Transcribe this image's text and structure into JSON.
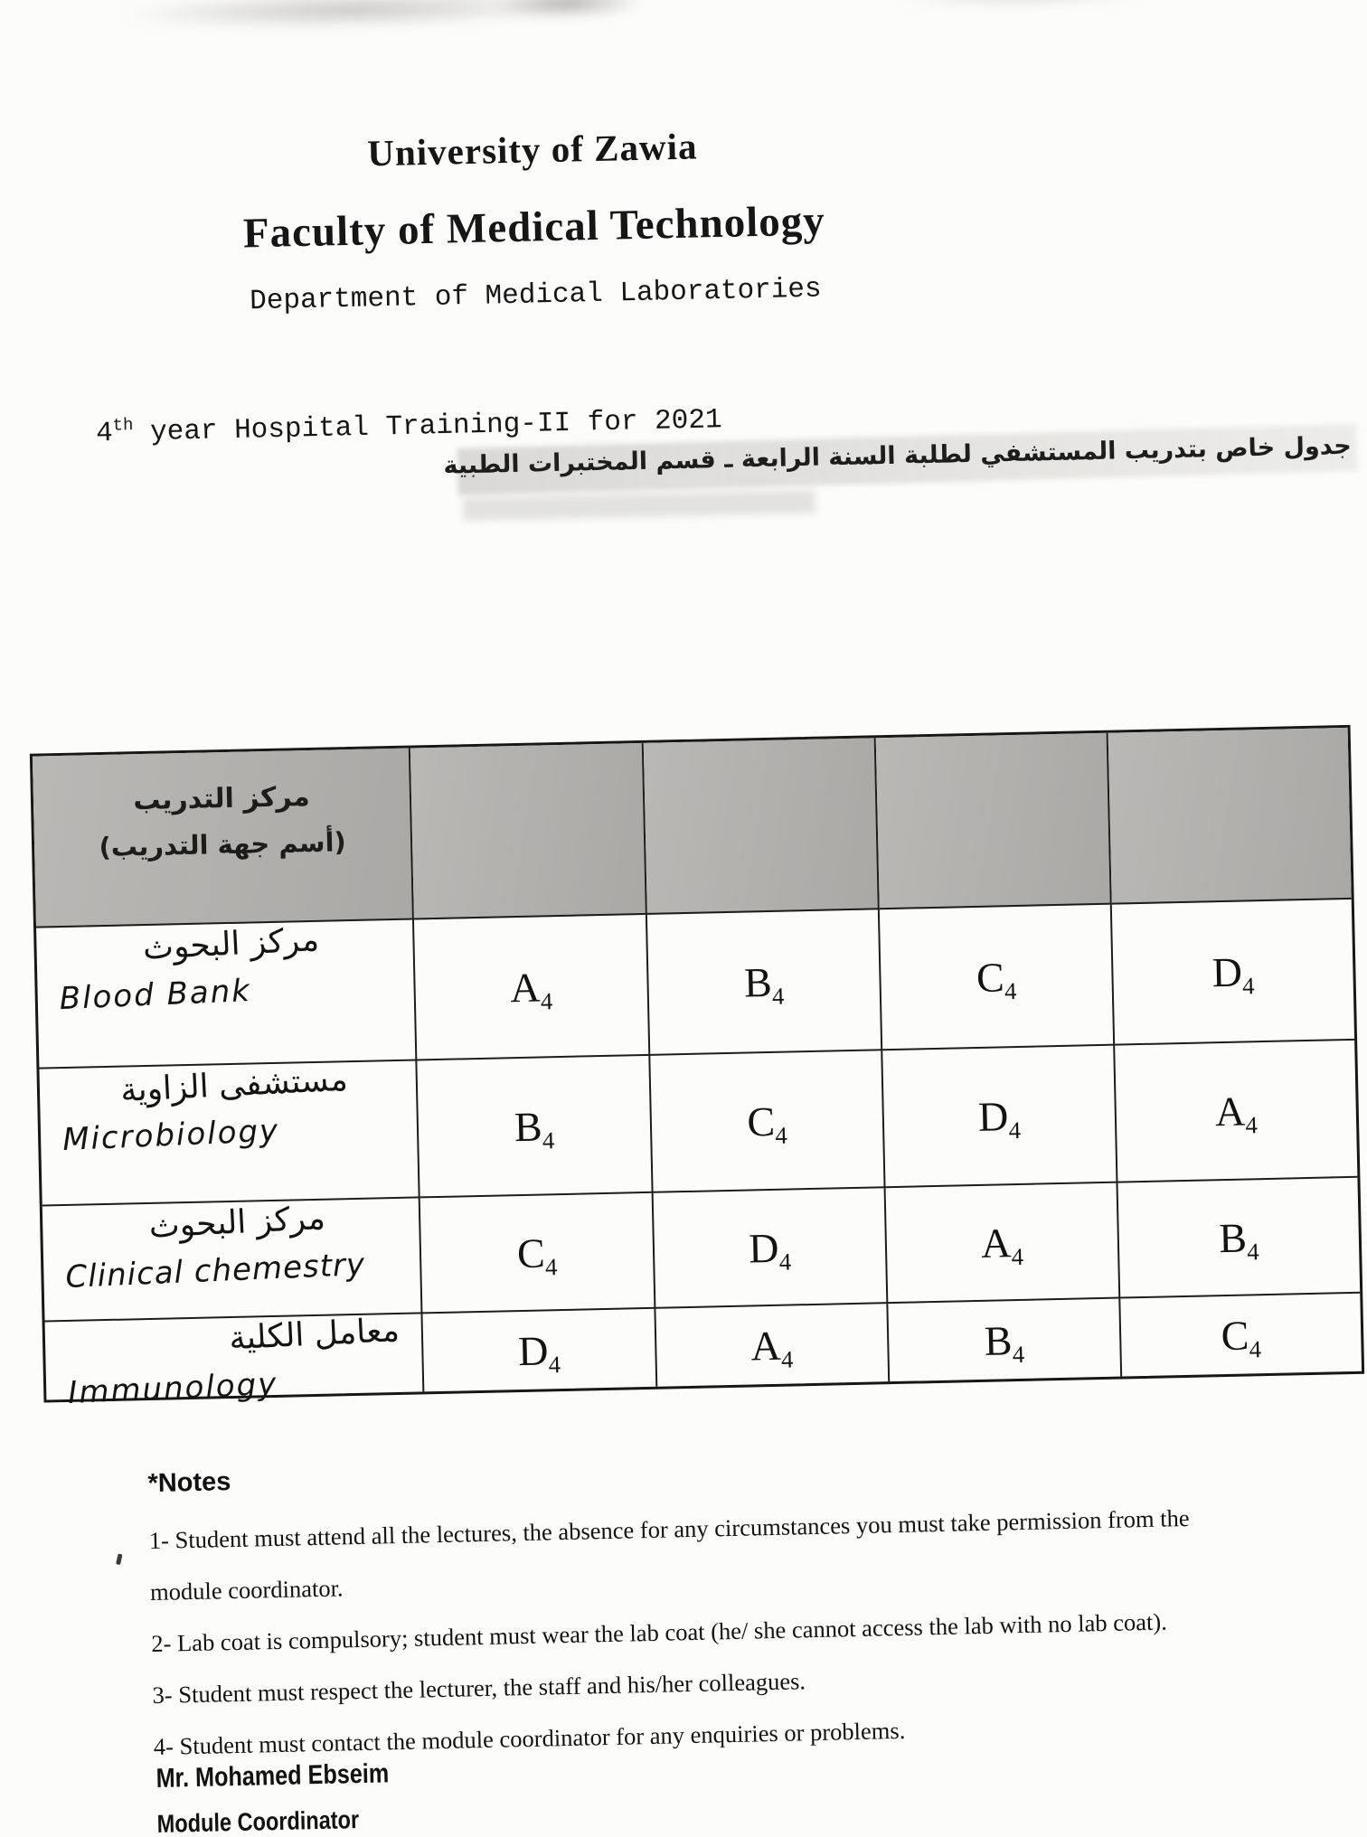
{
  "header": {
    "university": "University of Zawia",
    "faculty": "Faculty of Medical Technology",
    "department": "Department of Medical Laboratories",
    "course": {
      "num": "4",
      "sup": "th",
      "rest": " year Hospital Training-II for 2021"
    },
    "subtitle_ar": "جدول خاص بتدريب المستشفي لطلبة السنة الرابعة ـ قسم المختبرات الطبية"
  },
  "table": {
    "corner_header": {
      "line1": "مركز التدريب",
      "line2": "(أسم جهة التدريب)"
    },
    "rows": [
      {
        "name_ar": "مركز البحوث",
        "name_en": "Blood Bank",
        "cells": [
          {
            "l": "A",
            "s": "4"
          },
          {
            "l": "B",
            "s": "4"
          },
          {
            "l": "C",
            "s": "4"
          },
          {
            "l": "D",
            "s": "4"
          }
        ]
      },
      {
        "name_ar": "مستشفى الزاوية",
        "name_en": "Microbiology",
        "cells": [
          {
            "l": "B",
            "s": "4"
          },
          {
            "l": "C",
            "s": "4"
          },
          {
            "l": "D",
            "s": "4"
          },
          {
            "l": "A",
            "s": "4"
          }
        ]
      },
      {
        "name_ar": "مركز البحوث",
        "name_en": "Clinical chemestry",
        "cells": [
          {
            "l": "C",
            "s": "4"
          },
          {
            "l": "D",
            "s": "4"
          },
          {
            "l": "A",
            "s": "4"
          },
          {
            "l": "B",
            "s": "4"
          }
        ]
      },
      {
        "name_ar": "معامل الكلية",
        "name_en": "Immunology",
        "cells": [
          {
            "l": "D",
            "s": "4"
          },
          {
            "l": "A",
            "s": "4"
          },
          {
            "l": "B",
            "s": "4"
          },
          {
            "l": "C",
            "s": "4"
          }
        ]
      }
    ]
  },
  "notes": {
    "heading": "*Notes",
    "item1_num": "1-",
    "item1_text": " Student must attend all the lectures, the absence for any circumstances you must take permission from the",
    "item1_wrap": "module coordinator.",
    "item2_num": "2-",
    "item2_text": " Lab coat is compulsory; student must wear the lab coat (he/ she cannot access the lab with no lab coat).",
    "item3_num": "3-",
    "item3_text": " Student must respect the lecturer, the staff and his/her colleagues.",
    "item4_num": "4-",
    "item4_text": " Student must contact the module coordinator for any enquiries or problems."
  },
  "footer": {
    "name": "Mr. Mohamed Ebseim",
    "role": "Module Coordinator"
  }
}
